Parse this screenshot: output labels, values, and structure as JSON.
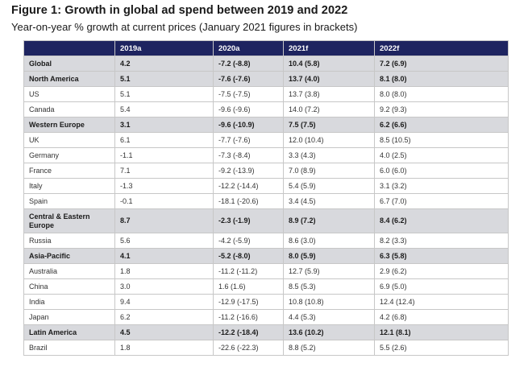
{
  "title": "Figure 1: Growth in global ad spend between 2019 and 2022",
  "subtitle": "Year-on-year % growth at current prices (January 2021 figures in brackets)",
  "table": {
    "headers": [
      "",
      "2019a",
      "2020a",
      "2021f",
      "2022f"
    ],
    "rows": [
      {
        "label": "Global",
        "region": true,
        "values": [
          "4.2",
          "-7.2 (-8.8)",
          "10.4 (5.8)",
          "7.2 (6.9)"
        ]
      },
      {
        "label": "North America",
        "region": true,
        "values": [
          "5.1",
          "-7.6 (-7.6)",
          "13.7 (4.0)",
          "8.1 (8.0)"
        ]
      },
      {
        "label": "US",
        "region": false,
        "values": [
          "5.1",
          "-7.5 (-7.5)",
          "13.7 (3.8)",
          "8.0 (8.0)"
        ]
      },
      {
        "label": "Canada",
        "region": false,
        "values": [
          "5.4",
          "-9.6 (-9.6)",
          "14.0 (7.2)",
          "9.2 (9.3)"
        ]
      },
      {
        "label": "Western Europe",
        "region": true,
        "values": [
          "3.1",
          "-9.6 (-10.9)",
          "7.5 (7.5)",
          "6.2 (6.6)"
        ]
      },
      {
        "label": "UK",
        "region": false,
        "values": [
          "6.1",
          "-7.7 (-7.6)",
          "12.0 (10.4)",
          "8.5 (10.5)"
        ]
      },
      {
        "label": "Germany",
        "region": false,
        "values": [
          "-1.1",
          "-7.3 (-8.4)",
          "3.3 (4.3)",
          "4.0 (2.5)"
        ]
      },
      {
        "label": "France",
        "region": false,
        "values": [
          "7.1",
          "-9.2 (-13.9)",
          "7.0 (8.9)",
          "6.0 (6.0)"
        ]
      },
      {
        "label": "Italy",
        "region": false,
        "values": [
          "-1.3",
          "-12.2 (-14.4)",
          "5.4 (5.9)",
          "3.1 (3.2)"
        ]
      },
      {
        "label": "Spain",
        "region": false,
        "values": [
          "-0.1",
          "-18.1 (-20.6)",
          "3.4 (4.5)",
          "6.7 (7.0)"
        ]
      },
      {
        "label": "Central & Eastern Europe",
        "region": true,
        "tall": true,
        "values": [
          "8.7",
          "-2.3 (-1.9)",
          "8.9 (7.2)",
          "8.4 (6.2)"
        ]
      },
      {
        "label": "Russia",
        "region": false,
        "values": [
          "5.6",
          "-4.2 (-5.9)",
          "8.6 (3.0)",
          "8.2 (3.3)"
        ]
      },
      {
        "label": "Asia-Pacific",
        "region": true,
        "values": [
          "4.1",
          "-5.2 (-8.0)",
          "8.0 (5.9)",
          "6.3 (5.8)"
        ]
      },
      {
        "label": "Australia",
        "region": false,
        "values": [
          "1.8",
          "-11.2 (-11.2)",
          "12.7 (5.9)",
          "2.9 (6.2)"
        ]
      },
      {
        "label": "China",
        "region": false,
        "values": [
          "3.0",
          "1.6 (1.6)",
          "8.5 (5.3)",
          "6.9 (5.0)"
        ]
      },
      {
        "label": "India",
        "region": false,
        "values": [
          "9.4",
          "-12.9 (-17.5)",
          "10.8 (10.8)",
          "12.4 (12.4)"
        ]
      },
      {
        "label": "Japan",
        "region": false,
        "values": [
          "6.2",
          "-11.2 (-16.6)",
          "4.4 (5.3)",
          "4.2 (6.8)"
        ]
      },
      {
        "label": "Latin America",
        "region": true,
        "values": [
          "4.5",
          "-12.2 (-18.4)",
          "13.6 (10.2)",
          "12.1 (8.1)"
        ]
      },
      {
        "label": "Brazil",
        "region": false,
        "values": [
          "1.8",
          "-22.6 (-22.3)",
          "8.8 (5.2)",
          "5.5 (2.6)"
        ]
      }
    ]
  },
  "colors": {
    "header_bg": "#1e2460",
    "region_bg": "#d8d9dd"
  }
}
